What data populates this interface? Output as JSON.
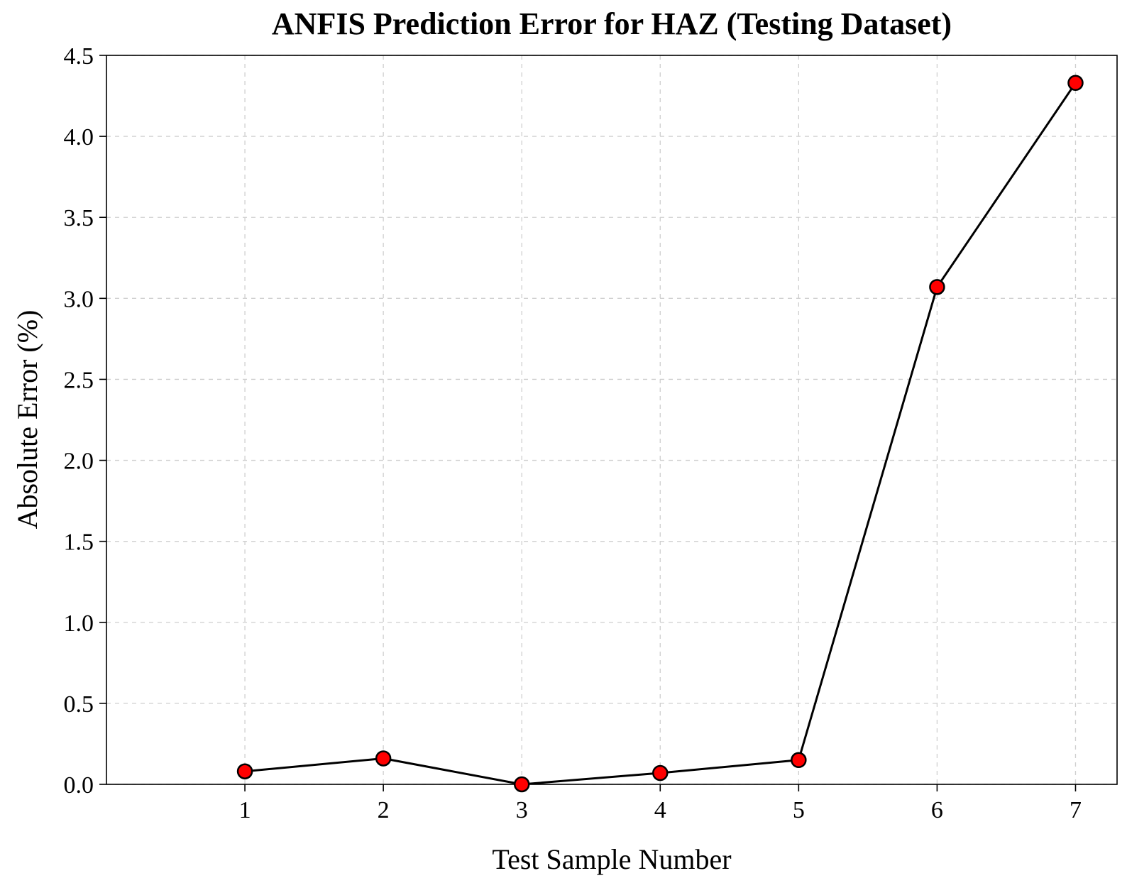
{
  "chart_data": {
    "type": "line",
    "title": "ANFIS Prediction Error for HAZ (Testing Dataset)",
    "xlabel": "Test Sample Number",
    "ylabel": "Absolute Error (%)",
    "x": [
      1,
      2,
      3,
      4,
      5,
      6,
      7
    ],
    "series": [
      {
        "values": [
          0.08,
          0.16,
          0.0,
          0.07,
          0.15,
          3.07,
          4.33
        ],
        "line_color": "#000000",
        "marker_color": "#ff0000",
        "marker": "circle"
      }
    ],
    "xlim": [
      0.0,
      7.3
    ],
    "ylim": [
      0.0,
      4.5
    ],
    "xticks": [
      1,
      2,
      3,
      4,
      5,
      6,
      7
    ],
    "xtick_labels": [
      "1",
      "2",
      "3",
      "4",
      "5",
      "6",
      "7"
    ],
    "yticks": [
      0.0,
      0.5,
      1.0,
      1.5,
      2.0,
      2.5,
      3.0,
      3.5,
      4.0,
      4.5
    ],
    "ytick_labels": [
      "0.0",
      "0.5",
      "1.0",
      "1.5",
      "2.0",
      "2.5",
      "3.0",
      "3.5",
      "4.0",
      "4.5"
    ],
    "grid": true,
    "legend": "none"
  }
}
